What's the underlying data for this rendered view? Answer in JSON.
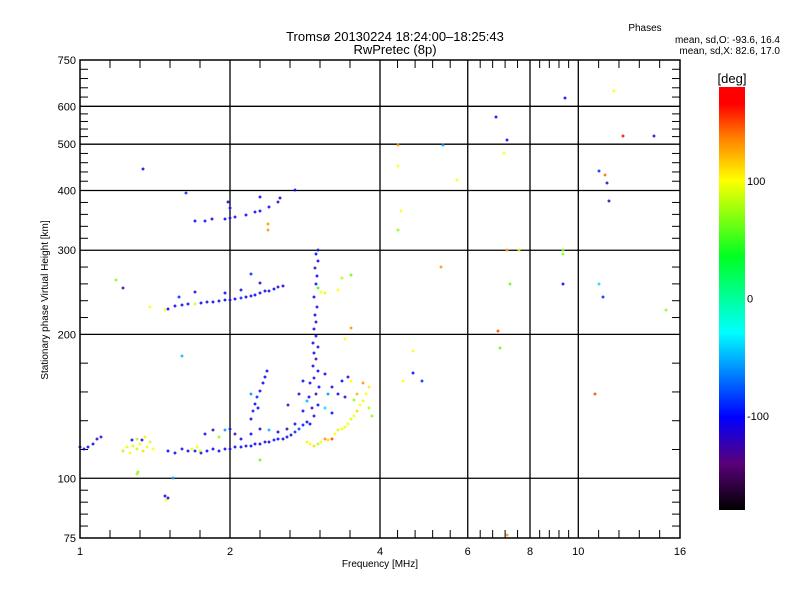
{
  "chart_data": {
    "type": "scatter",
    "title": "Tromsø 20130224 18:24:00–18:25:43",
    "subtitle": "RwPretec (8p)",
    "xlabel": "Frequency [MHz]",
    "ylabel": "Stationary phase Virtual Height [km]",
    "xscale": "log",
    "yscale": "log",
    "xlim": [
      1,
      16
    ],
    "ylim": [
      75,
      750
    ],
    "xticks": [
      1,
      2,
      4,
      6,
      8,
      10,
      16
    ],
    "xtick_labels": [
      "1",
      "2",
      "4",
      "6",
      "8",
      "10",
      "16"
    ],
    "yticks": [
      75,
      100,
      200,
      300,
      400,
      500,
      600,
      750
    ],
    "ytick_labels": [
      "75",
      "100",
      "200",
      "300",
      "400",
      "500",
      "600",
      "750"
    ],
    "grid": true,
    "stats": {
      "heading": "Phases",
      "line_o": "mean, sd,O: -93.6, 16.4",
      "line_x": "mean, sd,X:  82.6, 17.0"
    },
    "colorbar": {
      "label": "[deg]",
      "range": [
        -180,
        180
      ],
      "ticks": [
        100,
        0,
        -100
      ],
      "tick_labels": [
        "100",
        "0",
        "-100"
      ]
    },
    "point_format": [
      "frequency_MHz",
      "height_km",
      "phase_deg"
    ],
    "points": [
      [
        1.0,
        116,
        -105
      ],
      [
        1.02,
        115,
        -100
      ],
      [
        1.04,
        116,
        -110
      ],
      [
        1.06,
        118,
        -100
      ],
      [
        1.08,
        121,
        -120
      ],
      [
        1.1,
        122,
        -95
      ],
      [
        1.22,
        114,
        80
      ],
      [
        1.24,
        116,
        95
      ],
      [
        1.26,
        113,
        100
      ],
      [
        1.28,
        117,
        90
      ],
      [
        1.3,
        115,
        85
      ],
      [
        1.32,
        118,
        100
      ],
      [
        1.34,
        114,
        110
      ],
      [
        1.36,
        116,
        95
      ],
      [
        1.38,
        119,
        90
      ],
      [
        1.4,
        115,
        100
      ],
      [
        1.3,
        121,
        80
      ],
      [
        1.35,
        122,
        105
      ],
      [
        1.27,
        120,
        -100
      ],
      [
        1.33,
        120,
        -110
      ],
      [
        1.3,
        102,
        75
      ],
      [
        1.31,
        103,
        70
      ],
      [
        1.5,
        114,
        -100
      ],
      [
        1.55,
        113,
        -105
      ],
      [
        1.6,
        115,
        -110
      ],
      [
        1.65,
        114,
        -100
      ],
      [
        1.7,
        114,
        -95
      ],
      [
        1.75,
        113,
        -110
      ],
      [
        1.8,
        114,
        -100
      ],
      [
        1.85,
        115,
        -105
      ],
      [
        1.9,
        114,
        -100
      ],
      [
        1.95,
        115,
        -110
      ],
      [
        2.0,
        115,
        -100
      ],
      [
        2.05,
        116,
        -105
      ],
      [
        2.1,
        116,
        -100
      ],
      [
        2.15,
        117,
        -110
      ],
      [
        2.2,
        117,
        -100
      ],
      [
        2.25,
        118,
        -105
      ],
      [
        2.3,
        118,
        -100
      ],
      [
        2.35,
        119,
        -110
      ],
      [
        2.4,
        119,
        -100
      ],
      [
        2.45,
        120,
        -95
      ],
      [
        2.5,
        121,
        -100
      ],
      [
        2.55,
        121,
        -105
      ],
      [
        2.6,
        122,
        -110
      ],
      [
        2.65,
        123,
        -100
      ],
      [
        2.7,
        125,
        -90
      ],
      [
        2.75,
        127,
        -85
      ],
      [
        2.8,
        129,
        -95
      ],
      [
        2.85,
        131,
        -100
      ],
      [
        1.68,
        115,
        95
      ],
      [
        1.72,
        116,
        100
      ],
      [
        1.74,
        114,
        90
      ],
      [
        1.78,
        124,
        -110
      ],
      [
        1.85,
        126,
        -120
      ],
      [
        1.95,
        126,
        -60
      ],
      [
        2.0,
        127,
        -100
      ],
      [
        2.05,
        124,
        -130
      ],
      [
        2.1,
        121,
        -100
      ],
      [
        1.9,
        122,
        70
      ],
      [
        2.2,
        124,
        -100
      ],
      [
        2.3,
        127,
        -110
      ],
      [
        2.4,
        126,
        -50
      ],
      [
        2.5,
        125,
        -100
      ],
      [
        2.6,
        127,
        -120
      ],
      [
        2.7,
        130,
        -110
      ],
      [
        2.2,
        133,
        -100
      ],
      [
        2.22,
        138,
        -95
      ],
      [
        2.25,
        143,
        -100
      ],
      [
        2.27,
        148,
        -90
      ],
      [
        2.3,
        152,
        -110
      ],
      [
        2.33,
        158,
        -100
      ],
      [
        2.35,
        163,
        -105
      ],
      [
        2.37,
        168,
        -110
      ],
      [
        2.2,
        150,
        -60
      ],
      [
        2.28,
        140,
        -100
      ],
      [
        2.9,
        130,
        -100
      ],
      [
        2.95,
        135,
        -110
      ],
      [
        2.92,
        140,
        -120
      ],
      [
        3.0,
        142,
        -100
      ],
      [
        2.88,
        148,
        -105
      ],
      [
        2.97,
        150,
        -130
      ],
      [
        3.02,
        155,
        -100
      ],
      [
        2.9,
        158,
        -110
      ],
      [
        2.95,
        162,
        -120
      ],
      [
        3.0,
        168,
        -100
      ],
      [
        2.93,
        172,
        -110
      ],
      [
        2.98,
        178,
        -130
      ],
      [
        2.95,
        183,
        -100
      ],
      [
        3.0,
        188,
        -115
      ],
      [
        2.93,
        192,
        -100
      ],
      [
        2.97,
        198,
        -110
      ],
      [
        2.95,
        205,
        -100
      ],
      [
        2.98,
        212,
        -120
      ],
      [
        2.96,
        220,
        -100
      ],
      [
        2.99,
        228,
        -110
      ],
      [
        2.95,
        240,
        -100
      ],
      [
        2.97,
        255,
        -110
      ],
      [
        2.99,
        265,
        -100
      ],
      [
        2.96,
        275,
        -120
      ],
      [
        3.0,
        285,
        -100
      ],
      [
        2.97,
        295,
        -100
      ],
      [
        3.01,
        300,
        -110
      ],
      [
        2.8,
        160,
        -100
      ],
      [
        2.75,
        150,
        -110
      ],
      [
        3.1,
        165,
        -100
      ],
      [
        3.15,
        150,
        -60
      ],
      [
        3.2,
        155,
        -110
      ],
      [
        3.3,
        150,
        -100
      ],
      [
        3.4,
        148,
        -120
      ],
      [
        3.1,
        140,
        -40
      ],
      [
        3.2,
        137,
        -100
      ],
      [
        3.35,
        160,
        -100
      ],
      [
        3.45,
        163,
        -110
      ],
      [
        2.8,
        138,
        -100
      ],
      [
        2.85,
        145,
        -50
      ],
      [
        2.85,
        119,
        95
      ],
      [
        2.9,
        118,
        100
      ],
      [
        2.95,
        117,
        110
      ],
      [
        3.0,
        118,
        80
      ],
      [
        3.05,
        119,
        100
      ],
      [
        3.1,
        121,
        130
      ],
      [
        3.15,
        120,
        110
      ],
      [
        3.2,
        121,
        150
      ],
      [
        3.25,
        124,
        100
      ],
      [
        3.3,
        126,
        90
      ],
      [
        3.35,
        127,
        100
      ],
      [
        3.4,
        128,
        95
      ],
      [
        3.45,
        130,
        100
      ],
      [
        3.5,
        133,
        90
      ],
      [
        3.55,
        135,
        100
      ],
      [
        3.6,
        138,
        110
      ],
      [
        3.65,
        142,
        100
      ],
      [
        3.7,
        145,
        95
      ],
      [
        3.75,
        150,
        100
      ],
      [
        3.8,
        155,
        105
      ],
      [
        3.6,
        150,
        120
      ],
      [
        3.7,
        158,
        130
      ],
      [
        3.55,
        146,
        70
      ],
      [
        3.8,
        140,
        80
      ],
      [
        3.5,
        160,
        100
      ],
      [
        3.85,
        135,
        70
      ],
      [
        1.5,
        226,
        -100
      ],
      [
        1.55,
        229,
        -110
      ],
      [
        1.6,
        230,
        -105
      ],
      [
        1.65,
        231,
        -100
      ],
      [
        1.7,
        232,
        90
      ],
      [
        1.75,
        233,
        -100
      ],
      [
        1.8,
        234,
        -110
      ],
      [
        1.85,
        234,
        -100
      ],
      [
        1.9,
        235,
        -105
      ],
      [
        1.95,
        236,
        -100
      ],
      [
        2.0,
        236,
        -110
      ],
      [
        2.05,
        237,
        -100
      ],
      [
        2.1,
        238,
        -90
      ],
      [
        2.15,
        239,
        -100
      ],
      [
        2.2,
        241,
        -110
      ],
      [
        2.25,
        242,
        -100
      ],
      [
        2.3,
        244,
        -105
      ],
      [
        2.35,
        246,
        -100
      ],
      [
        2.4,
        247,
        -110
      ],
      [
        2.45,
        249,
        -100
      ],
      [
        2.5,
        251,
        -120
      ],
      [
        2.55,
        252,
        -100
      ],
      [
        1.58,
        240,
        -90
      ],
      [
        1.7,
        245,
        -110
      ],
      [
        1.95,
        244,
        -100
      ],
      [
        2.1,
        248,
        -110
      ],
      [
        2.3,
        256,
        -110
      ],
      [
        1.38,
        228,
        100
      ],
      [
        1.48,
        225,
        100
      ],
      [
        3.05,
        245,
        100
      ],
      [
        3.1,
        244,
        90
      ],
      [
        3.3,
        248,
        100
      ],
      [
        3.35,
        262,
        80
      ],
      [
        3.5,
        266,
        60
      ],
      [
        3.0,
        250,
        50
      ],
      [
        1.7,
        345,
        -100
      ],
      [
        1.78,
        346,
        -110
      ],
      [
        1.84,
        349,
        -100
      ],
      [
        1.95,
        348,
        -105
      ],
      [
        2.0,
        350,
        -100
      ],
      [
        2.05,
        352,
        -110
      ],
      [
        2.15,
        356,
        -100
      ],
      [
        2.25,
        360,
        -110
      ],
      [
        2.3,
        363,
        -100
      ],
      [
        2.4,
        370,
        -110
      ],
      [
        2.5,
        378,
        -120
      ],
      [
        2.52,
        385,
        -100
      ],
      [
        2.0,
        368,
        -100
      ],
      [
        1.98,
        378,
        -105
      ],
      [
        2.3,
        388,
        -100
      ],
      [
        1.63,
        396,
        -90
      ],
      [
        2.38,
        340,
        130
      ],
      [
        2.38,
        330,
        130
      ],
      [
        2.7,
        400,
        -100
      ],
      [
        1.34,
        444,
        -100
      ],
      [
        1.18,
        260,
        70
      ],
      [
        1.22,
        250,
        -130
      ],
      [
        2.2,
        267,
        -90
      ],
      [
        1.6,
        180,
        -50
      ],
      [
        1.54,
        100,
        -60
      ],
      [
        1.48,
        92,
        -100
      ],
      [
        1.5,
        91,
        -110
      ],
      [
        1.49,
        90,
        100
      ],
      [
        2.3,
        109,
        60
      ],
      [
        2.62,
        142,
        -130
      ],
      [
        3.5,
        206,
        130
      ],
      [
        3.4,
        196,
        100
      ],
      [
        4.35,
        497,
        130
      ],
      [
        4.35,
        450,
        100
      ],
      [
        4.4,
        362,
        100
      ],
      [
        4.35,
        330,
        70
      ],
      [
        5.35,
        497,
        -60
      ],
      [
        5.7,
        420,
        100
      ],
      [
        5.3,
        277,
        130
      ],
      [
        4.45,
        160,
        100
      ],
      [
        4.65,
        185,
        100
      ],
      [
        4.85,
        160,
        -90
      ],
      [
        4.65,
        166,
        -100
      ],
      [
        6.85,
        570,
        -100
      ],
      [
        7.2,
        510,
        -100
      ],
      [
        7.1,
        480,
        100
      ],
      [
        7.2,
        300,
        130
      ],
      [
        7.6,
        300,
        80
      ],
      [
        9.3,
        295,
        70
      ],
      [
        9.3,
        255,
        -100
      ],
      [
        9.4,
        625,
        -100
      ],
      [
        7.3,
        255,
        60
      ],
      [
        6.9,
        203,
        150
      ],
      [
        6.95,
        187,
        60
      ],
      [
        7.2,
        76,
        130
      ],
      [
        11.8,
        645,
        100
      ],
      [
        12.3,
        520,
        170
      ],
      [
        14.2,
        520,
        -110
      ],
      [
        11.0,
        440,
        -90
      ],
      [
        11.4,
        415,
        -120
      ],
      [
        11.5,
        380,
        -120
      ],
      [
        11.3,
        430,
        140
      ],
      [
        11.0,
        255,
        -40
      ],
      [
        11.2,
        240,
        -90
      ],
      [
        15.0,
        225,
        70
      ],
      [
        10.8,
        150,
        150
      ],
      [
        9.3,
        300,
        60
      ]
    ]
  }
}
